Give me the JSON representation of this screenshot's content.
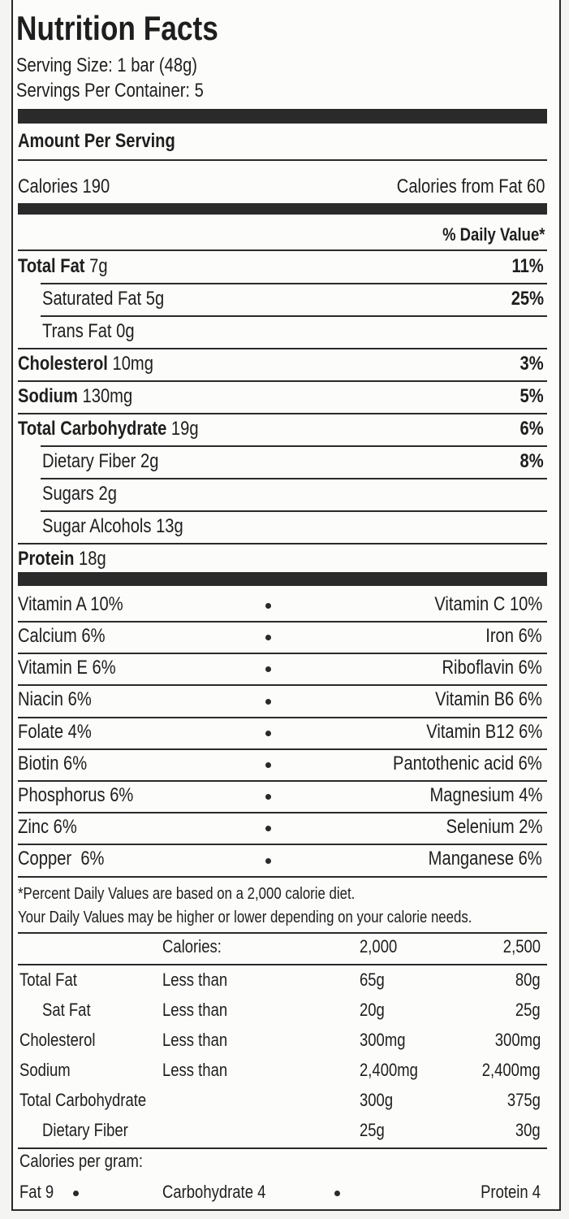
{
  "title": "Nutrition Facts",
  "serving_size": "Serving Size: 1 bar (48g)",
  "servings_per_container": "Servings Per Container: 5",
  "amount_per_serving": "Amount Per Serving",
  "calories": "Calories 190",
  "calories_from_fat": "Calories from Fat 60",
  "daily_value_header": "% Daily Value*",
  "nutrients": [
    {
      "name": "Total Fat",
      "amount": "7g",
      "dv": "11%"
    },
    {
      "name": "Saturated Fat",
      "amount": "5g",
      "dv": "25%"
    },
    {
      "name": "Trans Fat",
      "amount": "0g"
    },
    {
      "name": "Cholesterol",
      "amount": "10mg",
      "dv": "3%"
    },
    {
      "name": "Sodium",
      "amount": "130mg",
      "dv": "5%"
    },
    {
      "name": "Total Carbohydrate",
      "amount": "19g",
      "dv": "6%"
    },
    {
      "name": "Dietary Fiber",
      "amount": "2g",
      "dv": "8%"
    },
    {
      "name": "Sugars",
      "amount": "2g"
    },
    {
      "name": "Sugar Alcohols",
      "amount": "13g"
    },
    {
      "name": "Protein",
      "amount": "18g"
    }
  ],
  "vitamins": [
    [
      "Vitamin A 10%",
      "Vitamin C 10%"
    ],
    [
      "Calcium 6%",
      "Iron 6%"
    ],
    [
      "Vitamin E 6%",
      "Riboflavin 6%"
    ],
    [
      "Niacin 6%",
      "Vitamin B6 6%"
    ],
    [
      "Folate 4%",
      "Vitamin B12 6%"
    ],
    [
      "Biotin 6%",
      "Pantothenic acid 6%"
    ],
    [
      "Phosphorus 6%",
      "Magnesium 4%"
    ],
    [
      "Zinc 6%",
      "Selenium 2%"
    ],
    [
      "Copper  6%",
      "Manganese 6%"
    ]
  ],
  "footnote": [
    "*Percent Daily Values are based on a 2,000 calorie diet.",
    "Your Daily Values may be higher or lower depending on your calorie needs."
  ],
  "reference_table": {
    "header": [
      "Calories:",
      "2,000",
      "2,500"
    ],
    "rows": [
      {
        "name": "Total Fat",
        "limit": "Less than",
        "v2000": "65g",
        "v2500": "80g"
      },
      {
        "name": "Sat Fat",
        "limit": "Less than",
        "v2000": "20g",
        "v2500": "25g"
      },
      {
        "name": "Cholesterol",
        "limit": "Less than",
        "v2000": "300mg",
        "v2500": "300mg"
      },
      {
        "name": "Sodium",
        "limit": "Less than",
        "v2000": "2,400mg",
        "v2500": "2,400mg"
      },
      {
        "name": "Total Carbohydrate",
        "v2000": "300g",
        "v2500": "375g"
      },
      {
        "name": "Dietary Fiber",
        "v2000": "25g",
        "v2500": "30g"
      }
    ]
  },
  "calories_per_gram": {
    "title": "Calories per gram:",
    "items": [
      "Fat 9",
      "Carbohydrate 4",
      "Protein 4"
    ]
  }
}
